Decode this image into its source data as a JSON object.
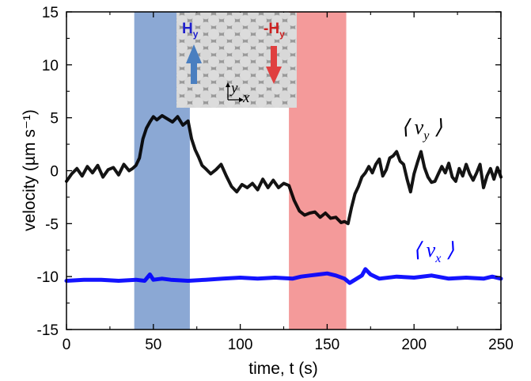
{
  "chart_data": {
    "type": "line",
    "xlabel": "time, t (s)",
    "ylabel": "velocity (µm s⁻¹)",
    "xlim": [
      0,
      250
    ],
    "ylim": [
      -15,
      15
    ],
    "xticks": [
      "0",
      "50",
      "100",
      "150",
      "200",
      "250"
    ],
    "yticks": [
      "15",
      "10",
      "5",
      "0",
      "-5",
      "-10",
      "-15"
    ],
    "grid": false,
    "shaded_regions": [
      {
        "x": [
          39,
          71
        ],
        "color": "#8ba8d4"
      },
      {
        "x": [
          128,
          161
        ],
        "color": "#f49a9a"
      }
    ],
    "series": [
      {
        "name": "⟨ vy ⟩",
        "color": "#000000",
        "x": [
          0,
          3,
          6,
          9,
          12,
          15,
          18,
          21,
          24,
          27,
          30,
          33,
          36,
          38,
          40,
          42,
          44,
          46,
          48,
          50,
          52,
          55,
          58,
          61,
          64,
          67,
          70,
          72,
          74,
          76,
          78,
          80,
          83,
          86,
          89,
          92,
          95,
          98,
          101,
          104,
          107,
          110,
          113,
          116,
          119,
          122,
          125,
          128,
          131,
          134,
          137,
          140,
          143,
          146,
          149,
          152,
          155,
          158,
          160,
          162,
          164,
          166,
          168,
          170,
          172,
          174,
          176,
          178,
          180,
          182,
          184,
          186,
          188,
          190,
          192,
          194,
          196,
          198,
          200,
          202,
          204,
          206,
          208,
          210,
          212,
          214,
          216,
          218,
          220,
          222,
          224,
          226,
          228,
          230,
          232,
          234,
          236,
          238,
          240,
          242,
          244,
          246,
          248,
          250
        ],
        "values": [
          -1.0,
          -0.3,
          0.2,
          -0.5,
          0.4,
          -0.2,
          0.5,
          -0.6,
          0.1,
          0.3,
          -0.4,
          0.6,
          0.0,
          0.2,
          0.5,
          1.2,
          3.0,
          4.0,
          4.6,
          5.1,
          4.8,
          5.2,
          4.9,
          4.6,
          5.1,
          4.3,
          4.7,
          3.0,
          2.0,
          1.3,
          0.5,
          0.2,
          -0.3,
          0.1,
          0.6,
          -0.5,
          -1.5,
          -2.0,
          -1.3,
          -1.6,
          -1.2,
          -1.8,
          -0.8,
          -1.6,
          -0.9,
          -1.6,
          -1.2,
          -1.4,
          -2.8,
          -3.8,
          -4.2,
          -4.0,
          -3.9,
          -4.4,
          -4.0,
          -4.5,
          -4.4,
          -4.9,
          -4.8,
          -5.0,
          -3.5,
          -2.2,
          -1.5,
          -0.6,
          -0.2,
          0.4,
          -0.2,
          0.6,
          1.1,
          -0.5,
          0.1,
          1.2,
          1.4,
          1.8,
          0.9,
          0.6,
          -0.8,
          -2.0,
          -0.3,
          0.8,
          1.8,
          0.3,
          -0.6,
          -1.1,
          -1.0,
          -0.3,
          0.4,
          -0.2,
          0.7,
          -0.6,
          -1.0,
          0.2,
          -0.5,
          0.6,
          -0.3,
          -0.9,
          -0.2,
          0.6,
          -1.6,
          -0.5,
          0.2,
          -0.8,
          0.3,
          -0.6
        ]
      },
      {
        "name": "⟨ vx ⟩",
        "color": "#0000ff",
        "x": [
          0,
          10,
          20,
          30,
          40,
          45,
          48,
          50,
          55,
          60,
          70,
          80,
          90,
          100,
          110,
          120,
          130,
          135,
          140,
          145,
          150,
          155,
          160,
          163,
          166,
          170,
          172,
          175,
          180,
          190,
          200,
          210,
          220,
          230,
          240,
          245,
          250
        ],
        "values": [
          -10.4,
          -10.3,
          -10.3,
          -10.4,
          -10.3,
          -10.4,
          -9.8,
          -10.3,
          -10.2,
          -10.3,
          -10.4,
          -10.3,
          -10.2,
          -10.1,
          -10.2,
          -10.1,
          -10.2,
          -10.0,
          -9.9,
          -9.8,
          -9.7,
          -9.9,
          -10.2,
          -10.6,
          -10.3,
          -9.9,
          -9.3,
          -9.8,
          -10.2,
          -10.0,
          -10.1,
          -9.9,
          -10.2,
          -10.1,
          -10.2,
          -10.0,
          -10.2
        ]
      }
    ]
  },
  "labels": {
    "vy": {
      "open": "⟨ ",
      "var": "v",
      "sub": "y",
      "close": " ⟩"
    },
    "vx": {
      "open": "⟨ ",
      "var": "v",
      "sub": "x",
      "close": " ⟩"
    }
  },
  "inset": {
    "hy_label": "H",
    "hy_sub": "y",
    "neg_hy_label": "-H",
    "neg_hy_sub": "y",
    "axis_y": "y",
    "axis_x": "x",
    "hy_color": "#2020cc",
    "neg_hy_color": "#cc2020",
    "up_arrow_color": "#4a7fc0",
    "down_arrow_color": "#e04040"
  }
}
